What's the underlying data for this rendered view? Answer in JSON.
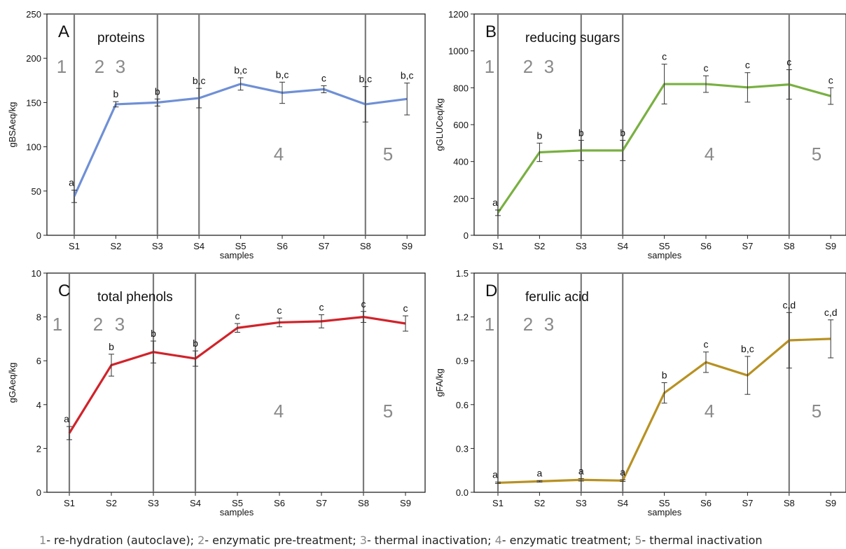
{
  "footer": {
    "items": [
      {
        "num": "1",
        "text": "- re-hydration (autoclave); "
      },
      {
        "num": "2",
        "text": "- enzymatic pre-treatment; "
      },
      {
        "num": "3",
        "text": "- thermal inactivation; "
      },
      {
        "num": "4",
        "text": "- enzymatic treatment; "
      },
      {
        "num": "5",
        "text": "- thermal inactivation"
      }
    ]
  },
  "chart_data": [
    {
      "type": "line",
      "panel_letter": "A",
      "title": "proteins",
      "ylabel": "gBSAeq/kg",
      "xlabel": "samples",
      "categories": [
        "S1",
        "S2",
        "S3",
        "S4",
        "S5",
        "S6",
        "S7",
        "S8",
        "S9"
      ],
      "ylim": [
        0,
        250
      ],
      "yticks": [
        0,
        50,
        100,
        150,
        200,
        250
      ],
      "ytick_labels": [
        "0",
        "50",
        "100",
        "150",
        "200",
        "250"
      ],
      "series": [
        {
          "color": "#6f90d6",
          "values": [
            44,
            148,
            150,
            155,
            171,
            161,
            165,
            148,
            154
          ],
          "errors": [
            7,
            3,
            4,
            11,
            7,
            12,
            4,
            20,
            18
          ],
          "labels": [
            "a",
            "b",
            "b",
            "b,c",
            "b,c",
            "b,c",
            "c",
            "b,c",
            "b,c"
          ]
        }
      ],
      "region_labels": [
        "1",
        "2",
        "3",
        "4",
        "5"
      ],
      "region_boundaries_after": [
        1,
        3,
        4,
        8
      ]
    },
    {
      "type": "line",
      "panel_letter": "B",
      "title": "reducing sugars",
      "ylabel": "gGLUCeq/kg",
      "xlabel": "samples",
      "categories": [
        "S1",
        "S2",
        "S3",
        "S4",
        "S5",
        "S6",
        "S7",
        "S8",
        "S9"
      ],
      "ylim": [
        0,
        1200
      ],
      "yticks": [
        0,
        200,
        400,
        600,
        800,
        1000,
        1200
      ],
      "ytick_labels": [
        "0",
        "200",
        "400",
        "600",
        "800",
        "1000",
        "1200"
      ],
      "series": [
        {
          "color": "#79b041",
          "values": [
            122,
            450,
            460,
            460,
            820,
            820,
            802,
            818,
            755
          ],
          "errors": [
            15,
            50,
            55,
            55,
            108,
            45,
            80,
            80,
            45
          ],
          "labels": [
            "a",
            "b",
            "b",
            "b",
            "c",
            "c",
            "c",
            "c",
            "c"
          ]
        }
      ],
      "region_labels": [
        "1",
        "2",
        "3",
        "4",
        "5"
      ],
      "region_boundaries_after": [
        1,
        3,
        4,
        8
      ]
    },
    {
      "type": "line",
      "panel_letter": "C",
      "title": "total phenols",
      "ylabel": "gGAeq/kg",
      "xlabel": "samples",
      "categories": [
        "S1",
        "S2",
        "S3",
        "S4",
        "S5",
        "S6",
        "S7",
        "S8",
        "S9"
      ],
      "ylim": [
        0,
        10
      ],
      "yticks": [
        0,
        2,
        4,
        6,
        8,
        10
      ],
      "ytick_labels": [
        "0",
        "2",
        "4",
        "6",
        "8",
        "10"
      ],
      "series": [
        {
          "color": "#d1232a",
          "values": [
            2.7,
            5.8,
            6.4,
            6.1,
            7.5,
            7.75,
            7.8,
            8.0,
            7.7
          ],
          "errors": [
            0.3,
            0.5,
            0.5,
            0.35,
            0.2,
            0.2,
            0.3,
            0.25,
            0.35
          ],
          "labels": [
            "a",
            "b",
            "b",
            "b",
            "c",
            "c",
            "c",
            "c",
            "c"
          ]
        }
      ],
      "region_labels": [
        "1",
        "2",
        "3",
        "4",
        "5"
      ],
      "region_boundaries_after": [
        1,
        3,
        4,
        8
      ]
    },
    {
      "type": "line",
      "panel_letter": "D",
      "title": "ferulic acid",
      "ylabel": "gFA/kg",
      "xlabel": "samples",
      "categories": [
        "S1",
        "S2",
        "S3",
        "S4",
        "S5",
        "S6",
        "S7",
        "S8",
        "S9"
      ],
      "ylim": [
        0,
        1.5
      ],
      "yticks": [
        0,
        0.3,
        0.6,
        0.9,
        1.2,
        1.5
      ],
      "ytick_labels": [
        "0.0",
        "0.3",
        "0.6",
        "0.9",
        "1.2",
        "1.5"
      ],
      "series": [
        {
          "color": "#b89122",
          "values": [
            0.065,
            0.075,
            0.085,
            0.08,
            0.68,
            0.89,
            0.8,
            1.04,
            1.05
          ],
          "errors": [
            0.005,
            0.005,
            0.008,
            0.006,
            0.07,
            0.07,
            0.13,
            0.19,
            0.13
          ],
          "labels": [
            "a",
            "a",
            "a",
            "a",
            "b",
            "c",
            "b,c",
            "c,d",
            "c,d"
          ]
        }
      ],
      "region_labels": [
        "1",
        "2",
        "3",
        "4",
        "5"
      ],
      "region_boundaries_after": [
        1,
        3,
        4,
        8
      ]
    }
  ]
}
